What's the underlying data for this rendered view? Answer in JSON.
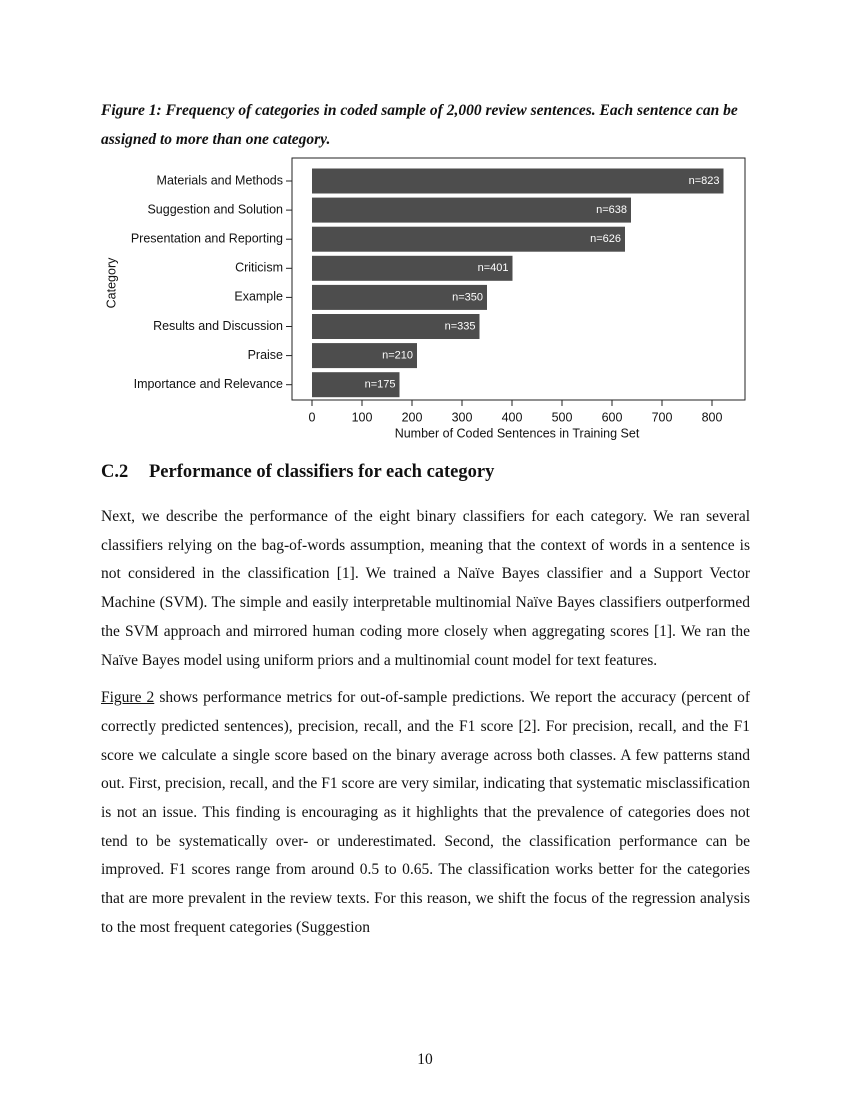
{
  "caption": "Figure 1: Frequency of categories in coded sample of 2,000 review sentences. Each sentence can be assigned to more than one category.",
  "chart_data": {
    "type": "bar",
    "orientation": "horizontal",
    "categories": [
      "Materials and Methods",
      "Suggestion and Solution",
      "Presentation and Reporting",
      "Criticism",
      "Example",
      "Results and Discussion",
      "Praise",
      "Importance and Relevance"
    ],
    "values": [
      823,
      638,
      626,
      401,
      350,
      335,
      210,
      175
    ],
    "value_labels": [
      "n=823",
      "n=638",
      "n=626",
      "n=401",
      "n=350",
      "n=335",
      "n=210",
      "n=175"
    ],
    "color": "#4d4d4d",
    "x_label": "Number of Coded Sentences in Training Set",
    "y_label": "Category",
    "xlim": [
      -40,
      866
    ],
    "xticks": [
      0,
      100,
      200,
      300,
      400,
      500,
      600,
      700,
      800
    ],
    "grid": false
  },
  "section": {
    "number": "C.2",
    "title": "Performance of classifiers for each category"
  },
  "paragraphs": [
    "Next, we describe the performance of the eight binary classifiers for each category. We ran several classifiers relying on the bag-of-words assumption, meaning that the context of words in a sentence is not considered in the classification [1]. We trained a Naïve Bayes classifier and a Support Vector Machine (SVM). The simple and easily interpretable multinomial Naïve Bayes classifiers outperformed the SVM approach and mirrored human coding more closely when aggregating scores [1]. We ran the Naïve Bayes model using uniform priors and a multinomial count model for text features.",
    {
      "link": "Figure 2",
      "text": " shows performance metrics for out-of-sample predictions. We report the accuracy (percent of correctly predicted sentences), precision, recall, and the F1 score [2]. For precision, recall, and the F1 score we calculate a single score based on the binary average across both classes. A few patterns stand out. First, precision, recall, and the F1 score are very similar, indicating that systematic misclassification is not an issue. This finding is encouraging as it highlights that the prevalence of categories does not tend to be systematically over- or underestimated. Second, the classification performance can be improved. F1 scores range from around 0.5 to 0.65. The classification works better for the categories that are more prevalent in the review texts. For this reason, we shift the focus of the regression analysis to the most frequent categories (Suggestion"
    }
  ],
  "page_number": "10"
}
